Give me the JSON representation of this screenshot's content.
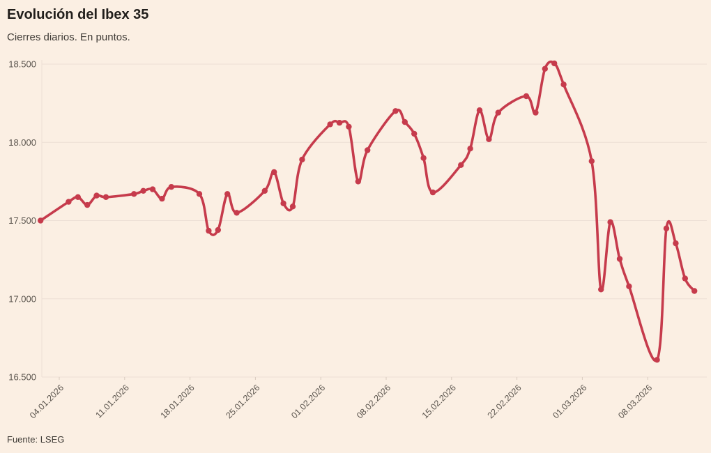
{
  "header": {
    "title": "Evolución del Ibex 35",
    "subtitle": "Cierres diarios. En puntos."
  },
  "footer": {
    "source": "Fuente: LSEG"
  },
  "colors": {
    "background": "#fbefe3",
    "line": "#c63b4c",
    "grid": "#ecdfd5",
    "tick": "#d9cbbf",
    "axis_text": "#5b554e"
  },
  "chart_data": {
    "type": "line",
    "title": "Evolución del Ibex 35",
    "subtitle": "Cierres diarios. En puntos.",
    "series_name": "Ibex 35",
    "xlabel": "",
    "ylabel": "",
    "grid": "horizontal-only",
    "legend": "none",
    "marker": "dot",
    "curve": "smooth",
    "x": [
      "2026-01-02",
      "2026-01-05",
      "2026-01-06",
      "2026-01-07",
      "2026-01-08",
      "2026-01-09",
      "2026-01-12",
      "2026-01-13",
      "2026-01-14",
      "2026-01-15",
      "2026-01-16",
      "2026-01-19",
      "2026-01-20",
      "2026-01-21",
      "2026-01-22",
      "2026-01-23",
      "2026-01-26",
      "2026-01-27",
      "2026-01-28",
      "2026-01-29",
      "2026-01-30",
      "2026-02-02",
      "2026-02-03",
      "2026-02-04",
      "2026-02-05",
      "2026-02-06",
      "2026-02-09",
      "2026-02-10",
      "2026-02-11",
      "2026-02-12",
      "2026-02-13",
      "2026-02-16",
      "2026-02-17",
      "2026-02-18",
      "2026-02-19",
      "2026-02-20",
      "2026-02-23",
      "2026-02-24",
      "2026-02-25",
      "2026-02-26",
      "2026-02-27",
      "2026-03-02",
      "2026-03-03",
      "2026-03-04",
      "2026-03-05",
      "2026-03-06",
      "2026-03-09",
      "2026-03-10",
      "2026-03-11",
      "2026-03-12",
      "2026-03-13"
    ],
    "values": [
      17500,
      17620,
      17650,
      17600,
      17660,
      17650,
      17670,
      17690,
      17700,
      17640,
      17715,
      17670,
      17435,
      17440,
      17670,
      17550,
      17690,
      17810,
      17610,
      17590,
      17890,
      18115,
      18125,
      18100,
      17750,
      17950,
      18200,
      18130,
      18055,
      17900,
      17680,
      17855,
      17960,
      18205,
      18020,
      18190,
      18295,
      18190,
      18470,
      18505,
      18370,
      17880,
      17060,
      17490,
      17255,
      17080,
      16610,
      17450,
      17355,
      17130,
      17050
    ],
    "x_tick_labels": [
      "04.01.2026",
      "11.01.2026",
      "18.01.2026",
      "25.01.2026",
      "01.02.2026",
      "08.02.2026",
      "15.02.2026",
      "22.02.2026",
      "01.03.2026",
      "08.03.2026"
    ],
    "y_ticks": [
      16500,
      17000,
      17500,
      18000,
      18500
    ],
    "y_tick_labels": [
      "16.500",
      "17.000",
      "17.500",
      "18.000",
      "18.500"
    ],
    "ylim": [
      16500,
      18500
    ],
    "source": "Fuente: LSEG"
  }
}
